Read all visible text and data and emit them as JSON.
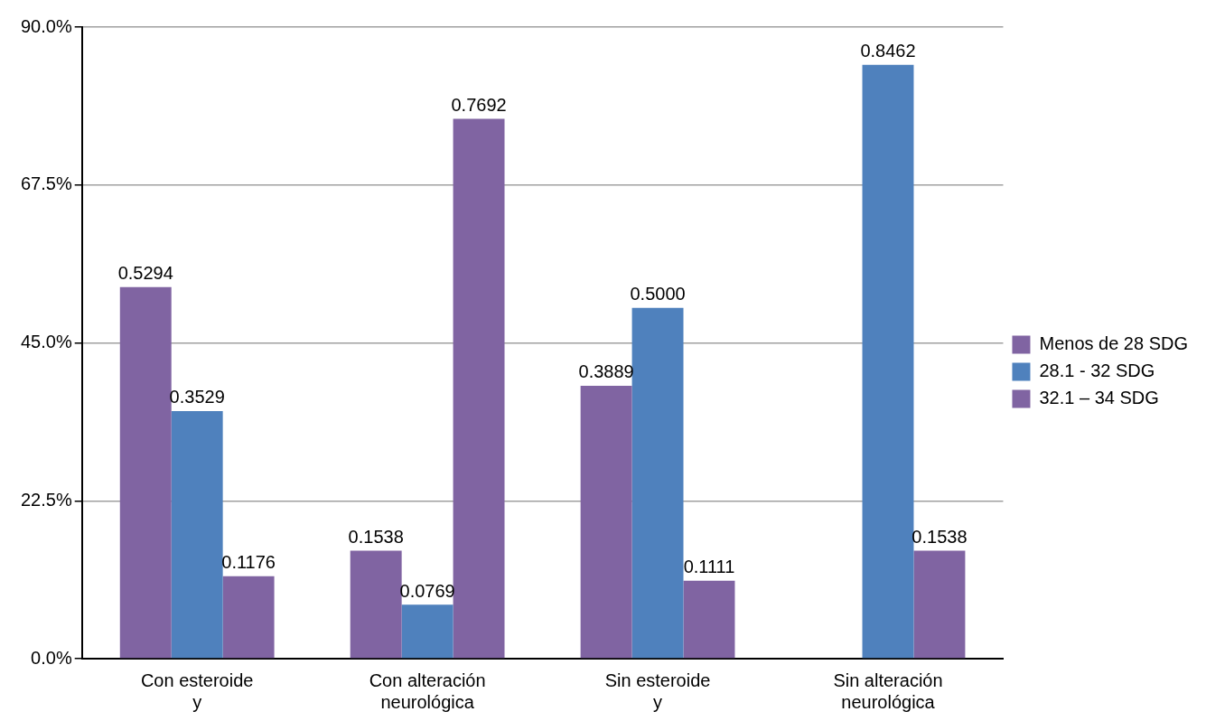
{
  "chart_data": {
    "type": "bar",
    "categories": [
      "Con esteroide y",
      "Con alteración neurológica",
      "Sin esteroide y",
      "Sin alteración neurológica"
    ],
    "series": [
      {
        "name": "Menos de 28 SDG",
        "color": "#8064a2",
        "values": [
          0.5294,
          0.1538,
          0.3889,
          null
        ],
        "value_labels": [
          "0.5294",
          "0.1538",
          "0.3889",
          null
        ]
      },
      {
        "name": "28.1 - 32 SDG",
        "color": "#4f81bd",
        "values": [
          0.3529,
          0.0769,
          0.5,
          0.8462
        ],
        "value_labels": [
          "0.3529",
          "0.0769",
          "0.5000",
          "0.8462"
        ]
      },
      {
        "name": "32.1 – 34 SDG",
        "color": "#8064a2",
        "values": [
          0.1176,
          0.7692,
          0.1111,
          0.1538
        ],
        "value_labels": [
          "0.1176",
          "0.7692",
          "0.1111",
          "0.1538"
        ]
      }
    ],
    "ylim": [
      0,
      0.9
    ],
    "yticks": [
      {
        "value": 0,
        "label": "0.0%"
      },
      {
        "value": 0.225,
        "label": "22.5%"
      },
      {
        "value": 0.45,
        "label": "45.0%"
      },
      {
        "value": 0.675,
        "label": "67.5%"
      },
      {
        "value": 0.9,
        "label": "90.0%"
      }
    ],
    "grid": "y",
    "legend": "right"
  }
}
